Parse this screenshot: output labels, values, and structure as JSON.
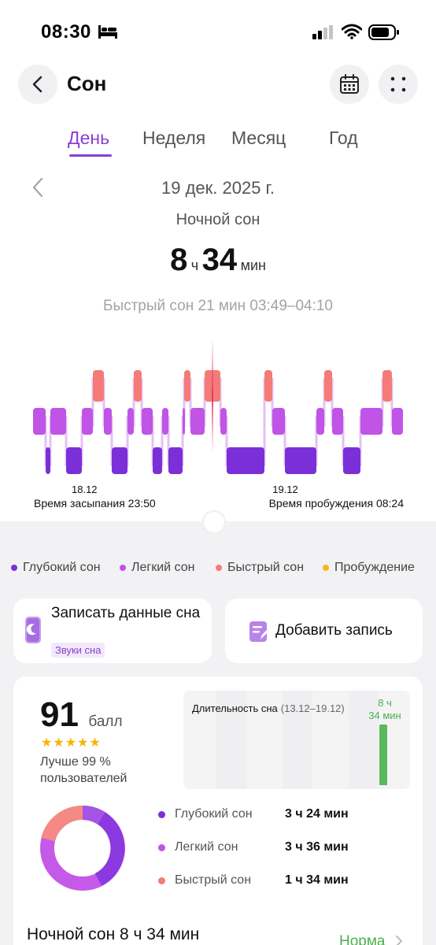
{
  "status_bar": {
    "time": "08:30"
  },
  "header": {
    "title": "Сон"
  },
  "tabs": [
    {
      "label": "День",
      "active": true
    },
    {
      "label": "Неделя",
      "active": false
    },
    {
      "label": "Месяц",
      "active": false
    },
    {
      "label": "Год",
      "active": false
    }
  ],
  "summary": {
    "date": "19 дек. 2025 г.",
    "type_label": "Ночной сон",
    "hours": "8",
    "hours_unit": "ч",
    "minutes": "34",
    "minutes_unit": "мин",
    "rem_info": "Быстрый сон 21 мин 03:49–04:10"
  },
  "timeline": {
    "start_date": "18.12",
    "start_label": "Время засыпания 23:50",
    "end_date": "19.12",
    "end_label": "Время пробуждения 08:24"
  },
  "legend": [
    {
      "label": "Глубокий сон",
      "color": "#7b2fd8"
    },
    {
      "label": "Легкий сон",
      "color": "#c054e6"
    },
    {
      "label": "Быстрый сон",
      "color": "#f47b78"
    },
    {
      "label": "Пробуждение",
      "color": "#f6b71b"
    }
  ],
  "actions": {
    "record_title": "Записать данные сна",
    "record_badge": "Звуки сна",
    "add_label": "Добавить запись"
  },
  "score": {
    "value": "91",
    "unit": "балл",
    "stars": "★★★★★",
    "better": "Лучше 99 % пользователей"
  },
  "duration_chart": {
    "title": "Длительность сна",
    "range": "(13.12–19.12)",
    "value_label_line1": "8 ч",
    "value_label_line2": "34 мин"
  },
  "stages": [
    {
      "name": "Глубокий сон",
      "value": "3 ч 24 мин",
      "color": "#7b2fd8"
    },
    {
      "name": "Легкий сон",
      "value": "3 ч 36 мин",
      "color": "#c054e6"
    },
    {
      "name": "Быстрый сон",
      "value": "1 ч 34 мин",
      "color": "#f47b78"
    }
  ],
  "bottom": {
    "title": "Ночной сон 8 ч 34 мин",
    "norm": "Норма"
  }
}
